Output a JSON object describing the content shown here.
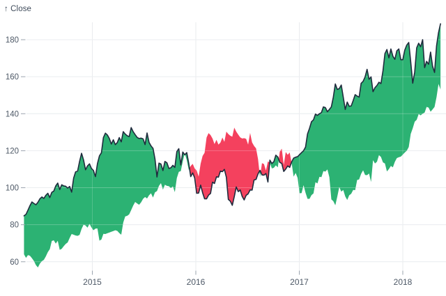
{
  "header": {
    "title": "↑ Close"
  },
  "chart_data": {
    "type": "area",
    "variant": "difference-band",
    "title": "↑ Close",
    "ylabel": "Close",
    "series_name": "Close",
    "x_tick_labels": [
      "2015",
      "2016",
      "2017",
      "2018"
    ],
    "x_ticks_years": [
      2015,
      2016,
      2017,
      2018
    ],
    "y_ticks": [
      60,
      80,
      100,
      120,
      140,
      160,
      180
    ],
    "x_domain": [
      "2014-05-05",
      "2018-05-14"
    ],
    "ylim": [
      55,
      192
    ],
    "grid": true,
    "legend_position": "none",
    "start_date": "2013-05-06",
    "interval_days": 7,
    "lag_points": 52,
    "note": "band fills green where Close exceeds its value one year earlier, red where below; dark line traces Close",
    "close": [
      64.0,
      62.1,
      63.6,
      63.2,
      61.9,
      60.4,
      58.2,
      56.9,
      59.0,
      60.3,
      61.0,
      62.9,
      65.2,
      66.8,
      71.2,
      71.6,
      69.8,
      71.3,
      66.4,
      67.0,
      68.4,
      69.6,
      70.4,
      72.8,
      75.0,
      74.6,
      74.2,
      74.0,
      74.5,
      77.7,
      80.0,
      79.6,
      78.4,
      80.5,
      78.5,
      77.0,
      77.9,
      78.0,
      71.4,
      72.0,
      75.1,
      75.0,
      75.4,
      75.8,
      76.2,
      76.6,
      77.0,
      76.7,
      75.5,
      74.6,
      81.2,
      84.5,
      84.8,
      85.6,
      87.9,
      90.3,
      92.3,
      91.5,
      90.8,
      92.1,
      94.0,
      95.0,
      94.2,
      95.9,
      97.0,
      94.7,
      97.5,
      98.2,
      101.0,
      102.5,
      99.0,
      101.6,
      101.0,
      100.8,
      99.8,
      100.7,
      97.6,
      105.2,
      108.6,
      109.0,
      114.2,
      118.6,
      115.0,
      109.7,
      111.8,
      112.9,
      110.4,
      109.3,
      106.0,
      113.0,
      117.2,
      118.9,
      127.1,
      129.5,
      128.5,
      126.6,
      123.6,
      125.9,
      123.3,
      124.4,
      127.1,
      124.8,
      130.3,
      129.0,
      128.1,
      127.6,
      132.5,
      130.3,
      128.7,
      127.2,
      126.6,
      126.8,
      126.4,
      123.3,
      129.6,
      124.5,
      122.6,
      121.3,
      115.5,
      105.8,
      113.3,
      112.8,
      109.3,
      114.2,
      113.5,
      110.4,
      110.8,
      112.1,
      111.0,
      119.5,
      121.1,
      112.3,
      119.3,
      117.8,
      119.0,
      113.2,
      106.0,
      108.0,
      105.3,
      97.0,
      97.1,
      101.4,
      97.3,
      94.0,
      94.0,
      96.0,
      96.9,
      103.0,
      102.3,
      105.9,
      105.7,
      109.0,
      108.7,
      109.9,
      105.7,
      93.7,
      92.7,
      90.5,
      95.2,
      100.4,
      97.9,
      98.8,
      95.3,
      93.4,
      95.9,
      96.7,
      98.8,
      98.7,
      104.2,
      104.5,
      107.5,
      109.4,
      106.9,
      106.8,
      107.7,
      103.1,
      114.9,
      113.1,
      114.1,
      117.6,
      116.6,
      113.7,
      113.1,
      108.8,
      110.1,
      111.8,
      111.0,
      114.0,
      116.0,
      116.5,
      116.8,
      117.9,
      119.0,
      120.0,
      122.0,
      129.1,
      132.1,
      135.7,
      136.7,
      139.8,
      139.1,
      140.0,
      140.6,
      143.7,
      143.3,
      141.1,
      142.3,
      143.7,
      149.0,
      156.1,
      153.1,
      153.6,
      155.5,
      149.0,
      142.3,
      146.3,
      144.0,
      144.2,
      147.1,
      150.3,
      149.5,
      149.0,
      156.4,
      157.5,
      159.9,
      164.0,
      158.6,
      159.9,
      151.9,
      154.1,
      155.3,
      157.0,
      156.3,
      163.1,
      172.5,
      174.7,
      170.2,
      175.0,
      171.1,
      169.4,
      174.0,
      175.0,
      169.2,
      169.2,
      174.4,
      177.1,
      178.5,
      168.0,
      156.5,
      162.5,
      175.6,
      178.1,
      176.2,
      180.0,
      164.9,
      168.3,
      166.7,
      173.3,
      165.7,
      162.3,
      176.6,
      183.8,
      188.6
    ],
    "colors": {
      "positive_fill": "#2cb273",
      "negative_fill": "#f4415e",
      "line": "#1f2b3d",
      "grid": "#e4e7eb",
      "tick_mark": "#9aa3ae",
      "tick_label": "#4d5866",
      "title": "#3e4a5a",
      "background": "#ffffff"
    }
  }
}
